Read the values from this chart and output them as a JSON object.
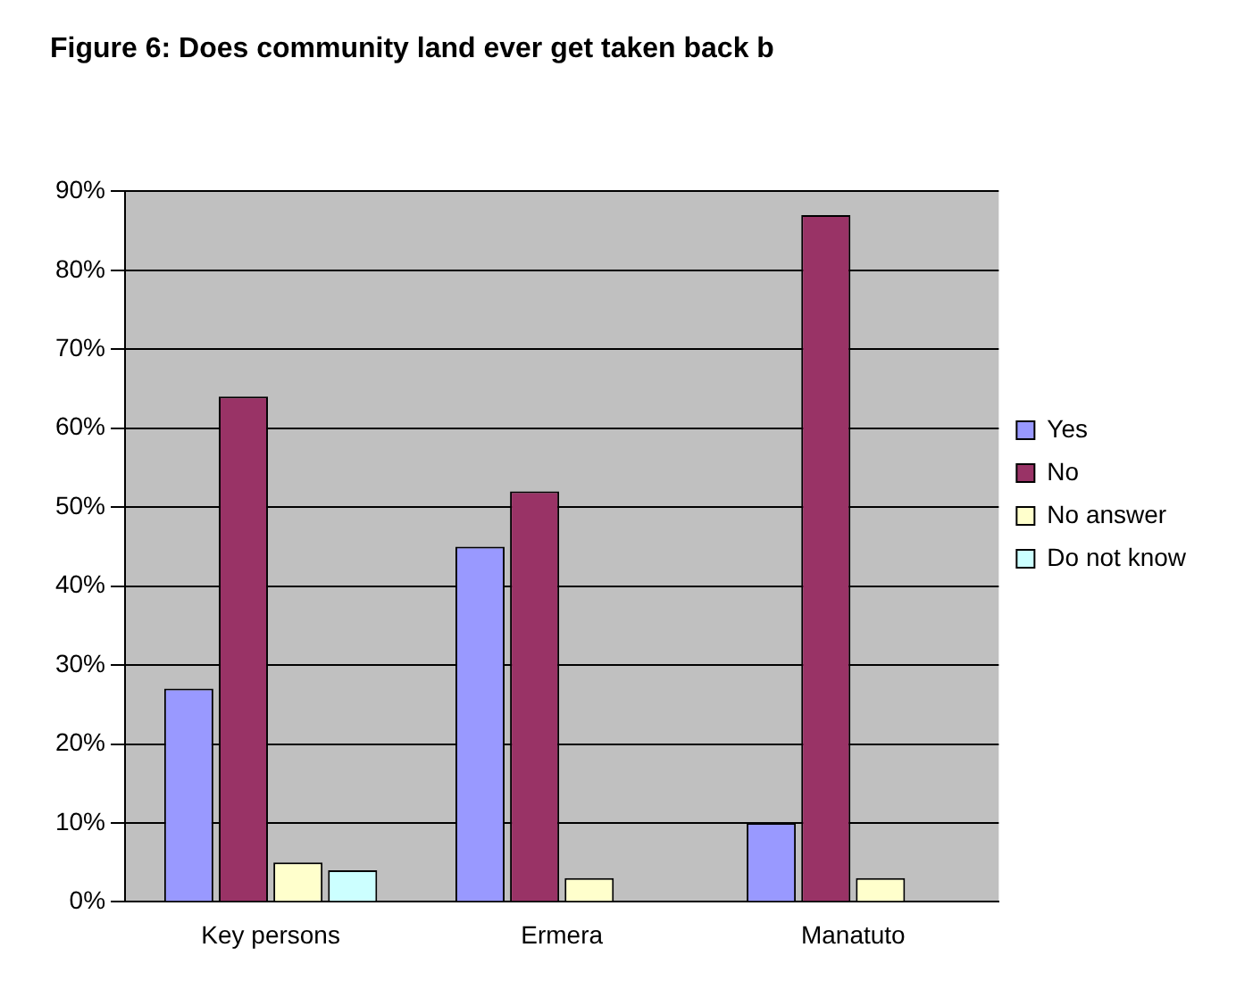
{
  "chart_data": {
    "type": "bar",
    "title": "Figure 6: Does community land ever get taken back b",
    "categories": [
      "Key persons",
      "Ermera",
      "Manatuto"
    ],
    "series": [
      {
        "name": "Yes",
        "color": "#9999ff",
        "values": [
          27,
          45,
          10
        ]
      },
      {
        "name": "No",
        "color": "#993366",
        "values": [
          64,
          52,
          87
        ]
      },
      {
        "name": "No answer",
        "color": "#ffffcc",
        "values": [
          5,
          3,
          3
        ]
      },
      {
        "name": "Do not know",
        "color": "#ccffff",
        "values": [
          4,
          0,
          0
        ]
      }
    ],
    "ylim": [
      0,
      90
    ],
    "yticks": [
      {
        "value": 0,
        "label": "0%"
      },
      {
        "value": 10,
        "label": "10%"
      },
      {
        "value": 20,
        "label": "20%"
      },
      {
        "value": 30,
        "label": "30%"
      },
      {
        "value": 40,
        "label": "40%"
      },
      {
        "value": 50,
        "label": "50%"
      },
      {
        "value": 60,
        "label": "60%"
      },
      {
        "value": 70,
        "label": "70%"
      },
      {
        "value": 80,
        "label": "80%"
      },
      {
        "value": 90,
        "label": "90%"
      }
    ],
    "grid": "y",
    "legend": "right"
  }
}
